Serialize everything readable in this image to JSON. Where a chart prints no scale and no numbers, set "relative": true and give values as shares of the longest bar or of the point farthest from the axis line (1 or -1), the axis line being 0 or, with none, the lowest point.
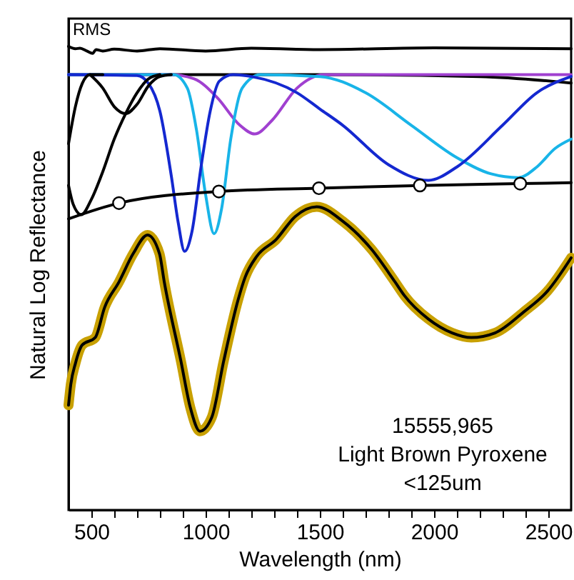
{
  "chart_data": {
    "type": "line",
    "relative": true,
    "xlabel": "Wavelength (nm)",
    "ylabel": "Natural Log Reflectance",
    "xlim": [
      400,
      2600
    ],
    "xticks": [
      500,
      {
        "value": 600,
        "label": null
      },
      {
        "value": 700,
        "label": null
      },
      {
        "value": 800,
        "label": null
      },
      {
        "value": 900,
        "label": null
      },
      1000,
      {
        "value": 1100,
        "label": null
      },
      {
        "value": 1200,
        "label": null
      },
      {
        "value": 1300,
        "label": null
      },
      {
        "value": 1400,
        "label": null
      },
      1500,
      {
        "value": 1600,
        "label": null
      },
      {
        "value": 1700,
        "label": null
      },
      {
        "value": 1800,
        "label": null
      },
      {
        "value": 1900,
        "label": null
      },
      2000,
      {
        "value": 2100,
        "label": null
      },
      {
        "value": 2200,
        "label": null
      },
      {
        "value": 2300,
        "label": null
      },
      {
        "value": 2400,
        "label": null
      },
      2500
    ],
    "annotations": [
      "15555,965",
      "Light Brown Pyroxene",
      "<125um"
    ],
    "series": [
      {
        "color": "#c8a000",
        "x": [
          400,
          410,
          430,
          460,
          517,
          558,
          621,
          683,
          746,
          798,
          819,
          892,
          933,
          975,
          1027,
          1079,
          1142,
          1173,
          1225,
          1308,
          1392,
          1486,
          1600,
          1725,
          1829,
          1871,
          1975,
          2079,
          2163,
          2267,
          2392,
          2496,
          2600
        ],
        "values": [
          0.226,
          0.271,
          0.316,
          0.356,
          0.372,
          0.437,
          0.492,
          0.553,
          0.593,
          0.553,
          0.492,
          0.321,
          0.221,
          0.17,
          0.2,
          0.321,
          0.453,
          0.502,
          0.548,
          0.583,
          0.633,
          0.654,
          0.623,
          0.563,
          0.492,
          0.462,
          0.412,
          0.382,
          0.372,
          0.382,
          0.427,
          0.472,
          0.544
        ]
      },
      {
        "color": "#000000",
        "x": [
          400,
          410,
          430,
          460,
          517,
          558,
          621,
          683,
          746,
          798,
          819,
          892,
          933,
          975,
          1027,
          1079,
          1142,
          1173,
          1225,
          1308,
          1392,
          1486,
          1600,
          1725,
          1829,
          1871,
          1975,
          2079,
          2163,
          2267,
          2392,
          2496,
          2600
        ],
        "values": [
          0.226,
          0.271,
          0.316,
          0.356,
          0.372,
          0.437,
          0.492,
          0.553,
          0.593,
          0.553,
          0.492,
          0.321,
          0.221,
          0.17,
          0.2,
          0.321,
          0.453,
          0.502,
          0.548,
          0.583,
          0.633,
          0.654,
          0.623,
          0.563,
          0.492,
          0.462,
          0.412,
          0.382,
          0.372,
          0.382,
          0.427,
          0.472,
          0.544
        ]
      },
      {
        "name": "RMS",
        "color": "#000000",
        "x": [
          400,
          430,
          450,
          480,
          506,
          520,
          550,
          600,
          700,
          800,
          1000,
          1200,
          1500,
          2000,
          2600
        ],
        "values": [
          1.0,
          0.995,
          0.996,
          0.99,
          0.985,
          0.993,
          0.99,
          0.994,
          0.99,
          0.995,
          0.99,
          0.996,
          0.993,
          0.997,
          0.995
        ]
      },
      {
        "color": "#000000",
        "x": [
          400,
          1500,
          2200,
          2600
        ],
        "values": [
          0.939,
          0.939,
          0.935,
          0.921
        ]
      },
      {
        "color": "#a040d0",
        "x": [
          400,
          850,
          950,
          1050,
          1150,
          1215,
          1290,
          1400,
          1520,
          2600
        ],
        "values": [
          0.939,
          0.939,
          0.93,
          0.89,
          0.83,
          0.811,
          0.84,
          0.91,
          0.939,
          0.939
        ]
      },
      {
        "color": "#18b4e8",
        "x": [
          400,
          860,
          920,
          960,
          1000,
          1037,
          1070,
          1110,
          1160,
          1240,
          1500,
          1700,
          1900,
          2100,
          2250,
          2369,
          2450,
          2530,
          2600
        ],
        "values": [
          0.939,
          0.939,
          0.91,
          0.82,
          0.68,
          0.596,
          0.65,
          0.8,
          0.91,
          0.939,
          0.935,
          0.9,
          0.83,
          0.76,
          0.725,
          0.717,
          0.74,
          0.78,
          0.8
        ]
      },
      {
        "color": "#1428d0",
        "x": [
          400,
          700,
          750,
          800,
          850,
          880,
          908,
          940,
          980,
          1020,
          1060,
          1120,
          1200,
          1400,
          1500,
          1600,
          1800,
          1975,
          2100,
          2300,
          2450,
          2600
        ],
        "values": [
          0.939,
          0.937,
          0.92,
          0.86,
          0.72,
          0.62,
          0.558,
          0.6,
          0.74,
          0.86,
          0.925,
          0.939,
          0.935,
          0.9,
          0.865,
          0.83,
          0.745,
          0.711,
          0.74,
          0.83,
          0.9,
          0.935
        ]
      },
      {
        "color": "#000000",
        "x": [
          400,
          420,
          456,
          500,
          550,
          600,
          650,
          700,
          750,
          800
        ],
        "values": [
          0.7,
          0.66,
          0.637,
          0.67,
          0.73,
          0.8,
          0.855,
          0.9,
          0.93,
          0.939
        ]
      },
      {
        "color": "#000000",
        "x": [
          400,
          430,
          460,
          494,
          550
        ],
        "values": [
          0.79,
          0.87,
          0.92,
          0.939,
          0.939
        ]
      },
      {
        "color": "#000000",
        "x": [
          494,
          550,
          600,
          650,
          700,
          750,
          800,
          850
        ],
        "values": [
          0.939,
          0.91,
          0.87,
          0.855,
          0.875,
          0.915,
          0.935,
          0.939
        ]
      },
      {
        "color": "#000000",
        "x": [
          400,
          621,
          1058,
          1496,
          1938,
          2377,
          2600
        ],
        "values": [
          0.628,
          0.662,
          0.687,
          0.694,
          0.7,
          0.704,
          0.706
        ]
      },
      {
        "type": "scatter",
        "marker": "circle",
        "color": "#ffffff",
        "x": [
          621,
          1058,
          1496,
          1938,
          2377
        ],
        "values": [
          0.662,
          0.687,
          0.694,
          0.7,
          0.704
        ]
      }
    ]
  }
}
